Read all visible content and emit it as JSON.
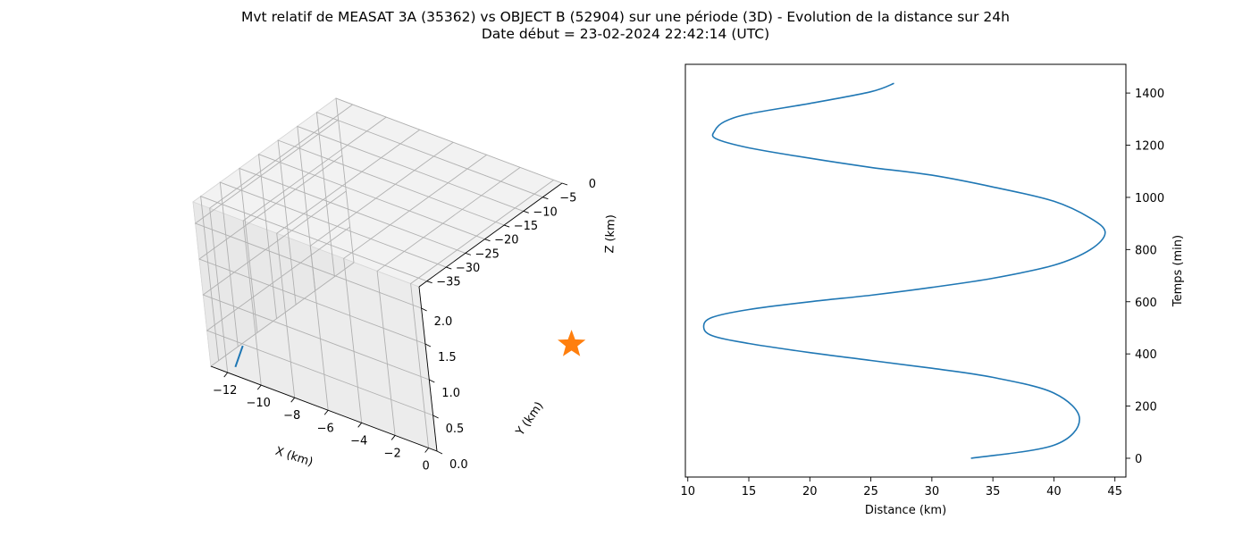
{
  "title": {
    "line1": "Mvt relatif de MEASAT 3A (35362) vs OBJECT B (52904) sur une période (3D) - Evolution de la distance sur 24h",
    "line2": "Date début = 23-02-2024 22:42:14 (UTC)"
  },
  "colors": {
    "series": "#1f77b4",
    "marker": "#ff7f0e",
    "grid": "#b0b0b0",
    "pane": "#f2f2f2"
  },
  "chart_data": [
    {
      "type": "line",
      "subtype": "3d",
      "xlabel": "X (km)",
      "ylabel": "Y (km)",
      "zlabel": "Z (km)",
      "x_ticks": [
        "−12",
        "−10",
        "−8",
        "−6",
        "−4",
        "−2",
        "0"
      ],
      "y_ticks": [
        "0.0",
        "0.5",
        "1.0",
        "1.5",
        "2.0"
      ],
      "z_ticks": [
        "0",
        "−5",
        "−10",
        "−15",
        "−20",
        "−25",
        "−30",
        "−35"
      ],
      "xlim": [
        -13,
        0.5
      ],
      "ylim": [
        0,
        2.3
      ],
      "zlim": [
        -37,
        0
      ],
      "series": [
        {
          "x": [
            -12.0,
            -11.6
          ],
          "y": [
            0.0,
            0.3
          ],
          "z": [
            -35.0,
            -34.2
          ]
        }
      ],
      "marker": {
        "shape": "star",
        "x": 0,
        "y": 0,
        "z": 0
      }
    },
    {
      "type": "line",
      "xlabel": "Distance (km)",
      "ylabel": "Temps (min)",
      "xlim": [
        9.8,
        45.9
      ],
      "ylim": [
        -72,
        1510
      ],
      "x_ticks": [
        "10",
        "15",
        "20",
        "25",
        "30",
        "35",
        "40",
        "45"
      ],
      "y_ticks": [
        "0",
        "200",
        "400",
        "600",
        "800",
        "1000",
        "1200",
        "1400"
      ],
      "y_axis_position": "right",
      "series": [
        {
          "x": [
            33.2,
            40.0,
            42.1,
            40.0,
            35.0,
            30.0,
            25.0,
            20.0,
            15.0,
            12.0,
            11.3,
            12.0,
            15.0,
            20.0,
            25.0,
            30.0,
            35.0,
            40.0,
            43.0,
            44.2,
            43.0,
            40.0,
            35.0,
            30.0,
            25.0,
            20.0,
            15.0,
            12.3,
            12.2,
            13.0,
            15.0,
            20.0,
            25.0,
            26.9
          ],
          "y": [
            0,
            50,
            150,
            250,
            310,
            345,
            375,
            405,
            440,
            470,
            505,
            540,
            570,
            600,
            625,
            655,
            690,
            740,
            800,
            865,
            920,
            985,
            1040,
            1085,
            1115,
            1150,
            1190,
            1225,
            1255,
            1290,
            1320,
            1360,
            1405,
            1437
          ]
        }
      ]
    }
  ]
}
